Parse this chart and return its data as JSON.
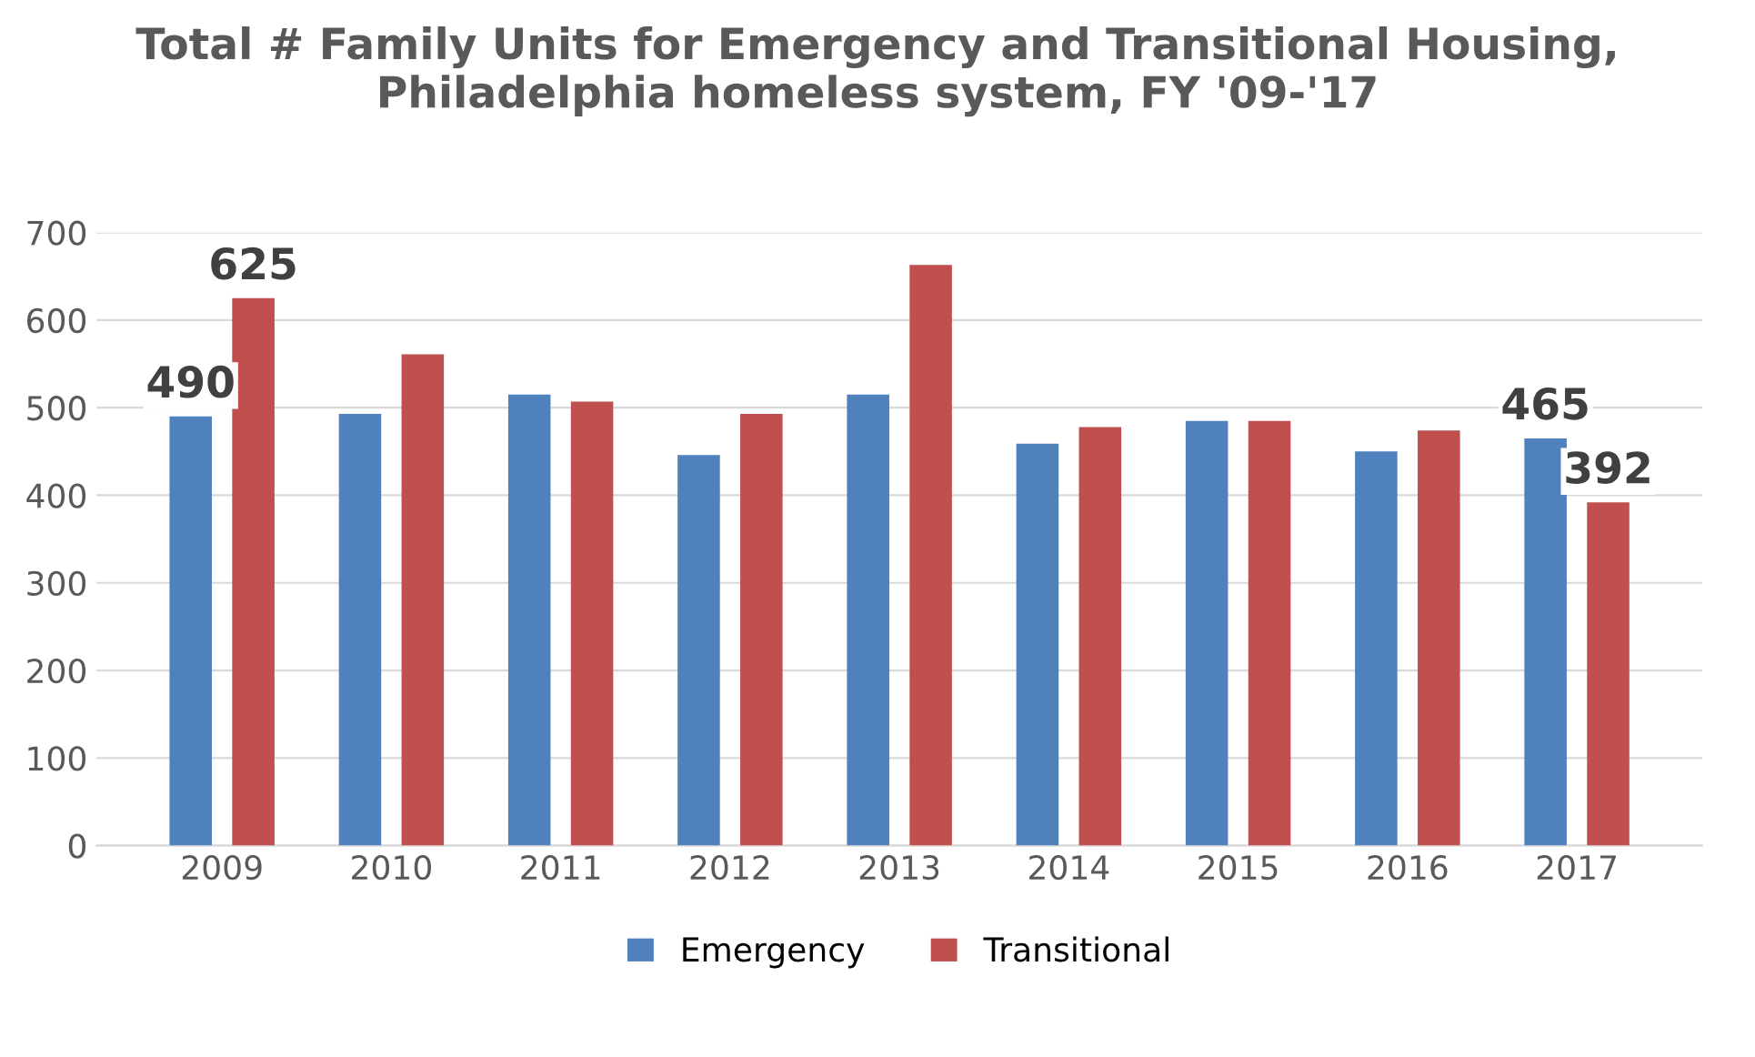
{
  "chart_data": {
    "type": "bar",
    "title": "Total # Family Units for Emergency and Transitional Housing, Philadelphia homeless system, FY '09-'17",
    "categories": [
      "2009",
      "2010",
      "2011",
      "2012",
      "2013",
      "2014",
      "2015",
      "2016",
      "2017"
    ],
    "series": [
      {
        "name": "Emergency",
        "color": "#4f81bd",
        "values": [
          490,
          493,
          515,
          446,
          515,
          459,
          485,
          450,
          465
        ],
        "value_labels": [
          "490",
          null,
          null,
          null,
          null,
          null,
          null,
          null,
          "465"
        ]
      },
      {
        "name": "Transitional",
        "color": "#c0504d",
        "values": [
          625,
          561,
          507,
          493,
          663,
          478,
          485,
          474,
          392
        ],
        "value_labels": [
          "625",
          null,
          null,
          null,
          null,
          null,
          null,
          null,
          "392"
        ]
      }
    ],
    "ylim": [
      0,
      700
    ],
    "yticks": [
      0,
      100,
      200,
      300,
      400,
      500,
      600,
      700
    ],
    "grid": "y",
    "legend": "bottom"
  }
}
